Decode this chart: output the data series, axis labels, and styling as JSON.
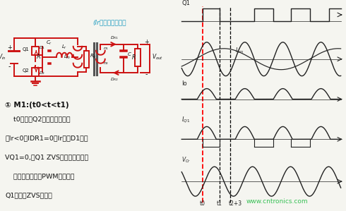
{
  "bg_color": "#f5f5f0",
  "circuit_title": "(Ir从左向右为正）",
  "circuit_title_color": "#1a9ac0",
  "circuit_color": "#cc1111",
  "text_color": "#111111",
  "waveform_color": "#222222",
  "watermark": "www.cntronics.com",
  "watermark_color": "#22bb44",
  "text_lines": [
    "① M1:(t0<t<t1)",
    "    t0时刻，Q2恰好关断，谐振",
    "流Ir<0，IDR1=0。Ir流经D1，使",
    "VQ1=0,为Q1 ZVS开通创造条件。",
    "    在这个过程中，PWM信号加在",
    "Q1上使其ZVS开通。"
  ]
}
